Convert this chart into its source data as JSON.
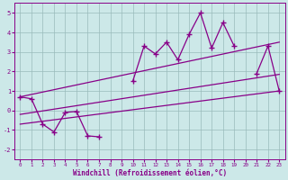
{
  "segments": [
    {
      "x": [
        0,
        1,
        2,
        3,
        4,
        5,
        6,
        7
      ],
      "y": [
        0.7,
        0.6,
        -0.7,
        -1.1,
        -0.1,
        -0.05,
        -1.3,
        -1.35
      ]
    },
    {
      "x": [
        10,
        11,
        12,
        13,
        14,
        15,
        16,
        17,
        18,
        19
      ],
      "y": [
        1.5,
        3.3,
        2.9,
        3.5,
        2.6,
        3.9,
        5.0,
        3.2,
        4.5,
        3.3
      ]
    },
    {
      "x": [
        21,
        22,
        23
      ],
      "y": [
        1.9,
        3.3,
        1.0
      ]
    }
  ],
  "upper_line": {
    "x": [
      0,
      23
    ],
    "y": [
      0.7,
      3.5
    ]
  },
  "middle_line": {
    "x": [
      0,
      23
    ],
    "y": [
      -0.2,
      1.85
    ]
  },
  "lower_line": {
    "x": [
      0,
      23
    ],
    "y": [
      -0.7,
      1.0
    ]
  },
  "bg_color": "#cce8e8",
  "line_color": "#880088",
  "grid_color": "#99bbbb",
  "xlabel": "Windchill (Refroidissement éolien,°C)",
  "xlim": [
    -0.5,
    23.5
  ],
  "ylim": [
    -2.5,
    5.5
  ],
  "yticks": [
    -2,
    -1,
    0,
    1,
    2,
    3,
    4,
    5
  ],
  "xticks": [
    0,
    1,
    2,
    3,
    4,
    5,
    6,
    7,
    8,
    9,
    10,
    11,
    12,
    13,
    14,
    15,
    16,
    17,
    18,
    19,
    20,
    21,
    22,
    23
  ]
}
